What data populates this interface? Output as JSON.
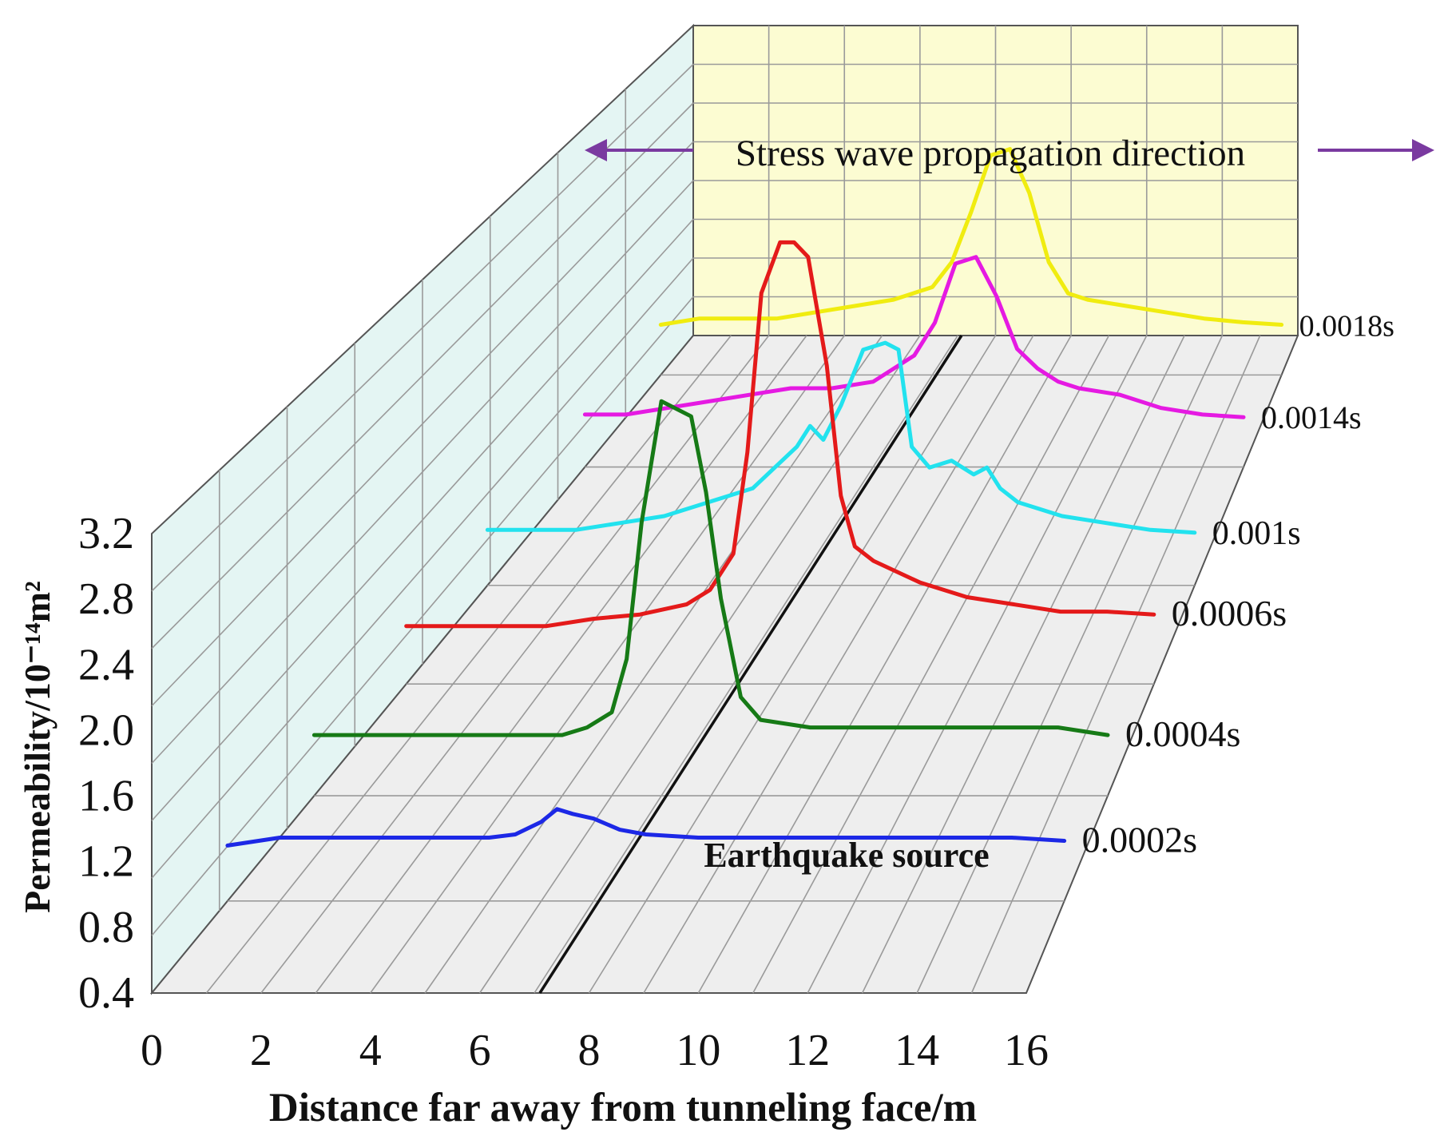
{
  "chart_data": {
    "type": "line",
    "style": "3d-waterfall",
    "xlabel": "Distance far away from tunneling face/m",
    "ylabel": "Permeability/10⁻¹⁴m²",
    "x_ticks": [
      "0",
      "2",
      "4",
      "6",
      "8",
      "10",
      "12",
      "14",
      "16"
    ],
    "y_ticks": [
      "0.4",
      "0.8",
      "1.2",
      "1.6",
      "2.0",
      "2.4",
      "2.8",
      "3.2"
    ],
    "xlim": [
      0,
      16
    ],
    "ylim": [
      0.4,
      3.2
    ],
    "grid": true,
    "annotations": {
      "source": "Earthquake source",
      "direction": "Stress wave propagation direction"
    },
    "colors": {
      "back_wall": "#fcfcd2",
      "side_wall": "#e4f5f3",
      "floor": "#eeeeee",
      "arrow": "#7a3aa0"
    },
    "series": [
      {
        "name": "0.0002s",
        "color": "#1c28e6",
        "x": [
          0,
          1,
          2,
          3,
          4,
          5,
          5.5,
          6,
          6.3,
          6.6,
          7,
          7.5,
          8,
          9,
          10,
          11,
          12,
          13,
          14,
          15,
          16
        ],
        "y": [
          0.75,
          0.8,
          0.8,
          0.8,
          0.8,
          0.8,
          0.82,
          0.9,
          0.98,
          0.95,
          0.92,
          0.85,
          0.82,
          0.8,
          0.8,
          0.8,
          0.8,
          0.8,
          0.8,
          0.8,
          0.78
        ]
      },
      {
        "name": "0.0004s",
        "color": "#167a16",
        "x": [
          0,
          1,
          2,
          3,
          4,
          5,
          5.5,
          6,
          6.3,
          6.6,
          7,
          7.3,
          7.6,
          7.9,
          8.2,
          8.6,
          9,
          10,
          11,
          12,
          13,
          14,
          15,
          16
        ],
        "y": [
          0.8,
          0.8,
          0.8,
          0.8,
          0.8,
          0.8,
          0.85,
          0.95,
          1.3,
          2.2,
          3.0,
          2.95,
          2.9,
          2.4,
          1.7,
          1.05,
          0.9,
          0.85,
          0.85,
          0.85,
          0.85,
          0.85,
          0.85,
          0.8
        ]
      },
      {
        "name": "0.0006s",
        "color": "#e41a1a",
        "x": [
          0,
          1,
          2,
          3,
          4,
          5,
          6,
          6.5,
          7,
          7.3,
          7.6,
          8,
          8.3,
          8.6,
          9,
          9.3,
          9.6,
          10,
          11,
          12,
          13,
          14,
          15,
          16
        ],
        "y": [
          0.8,
          0.8,
          0.8,
          0.8,
          0.85,
          0.88,
          0.95,
          1.05,
          1.3,
          2.0,
          3.1,
          3.45,
          3.45,
          3.35,
          2.6,
          1.7,
          1.35,
          1.25,
          1.1,
          1.0,
          0.95,
          0.9,
          0.9,
          0.88
        ]
      },
      {
        "name": "0.001s",
        "color": "#22e2ee",
        "x": [
          0,
          1,
          2,
          3,
          4,
          5,
          6,
          7,
          7.3,
          7.6,
          8,
          8.5,
          9,
          9.3,
          9.6,
          10,
          10.5,
          11,
          11.3,
          11.6,
          12,
          13,
          14,
          15,
          16
        ],
        "y": [
          0.8,
          0.8,
          0.8,
          0.85,
          0.9,
          1.0,
          1.1,
          1.4,
          1.55,
          1.45,
          1.7,
          2.1,
          2.15,
          2.1,
          1.4,
          1.25,
          1.3,
          1.2,
          1.25,
          1.1,
          1.0,
          0.9,
          0.85,
          0.8,
          0.78
        ]
      },
      {
        "name": "0.0014s",
        "color": "#e51ae2",
        "x": [
          0,
          1,
          2,
          3,
          4,
          5,
          6,
          7,
          8,
          8.5,
          9,
          9.5,
          10,
          10.5,
          11,
          11.5,
          12,
          13,
          14,
          15,
          16
        ],
        "y": [
          0.8,
          0.8,
          0.85,
          0.9,
          0.95,
          1.0,
          1.0,
          1.05,
          1.25,
          1.5,
          1.95,
          2.0,
          1.7,
          1.3,
          1.15,
          1.05,
          1.0,
          0.95,
          0.85,
          0.8,
          0.78
        ]
      },
      {
        "name": "0.0018s",
        "color": "#f0ec10",
        "x": [
          0,
          1,
          2,
          3,
          4,
          5,
          6,
          7,
          7.5,
          8,
          8.5,
          9,
          9.5,
          10,
          10.5,
          11,
          12,
          13,
          14,
          15,
          16
        ],
        "y": [
          0.8,
          0.85,
          0.85,
          0.85,
          0.9,
          0.95,
          1.0,
          1.1,
          1.3,
          1.7,
          2.15,
          2.2,
          1.85,
          1.3,
          1.05,
          1.0,
          0.95,
          0.9,
          0.85,
          0.82,
          0.8
        ]
      }
    ]
  }
}
